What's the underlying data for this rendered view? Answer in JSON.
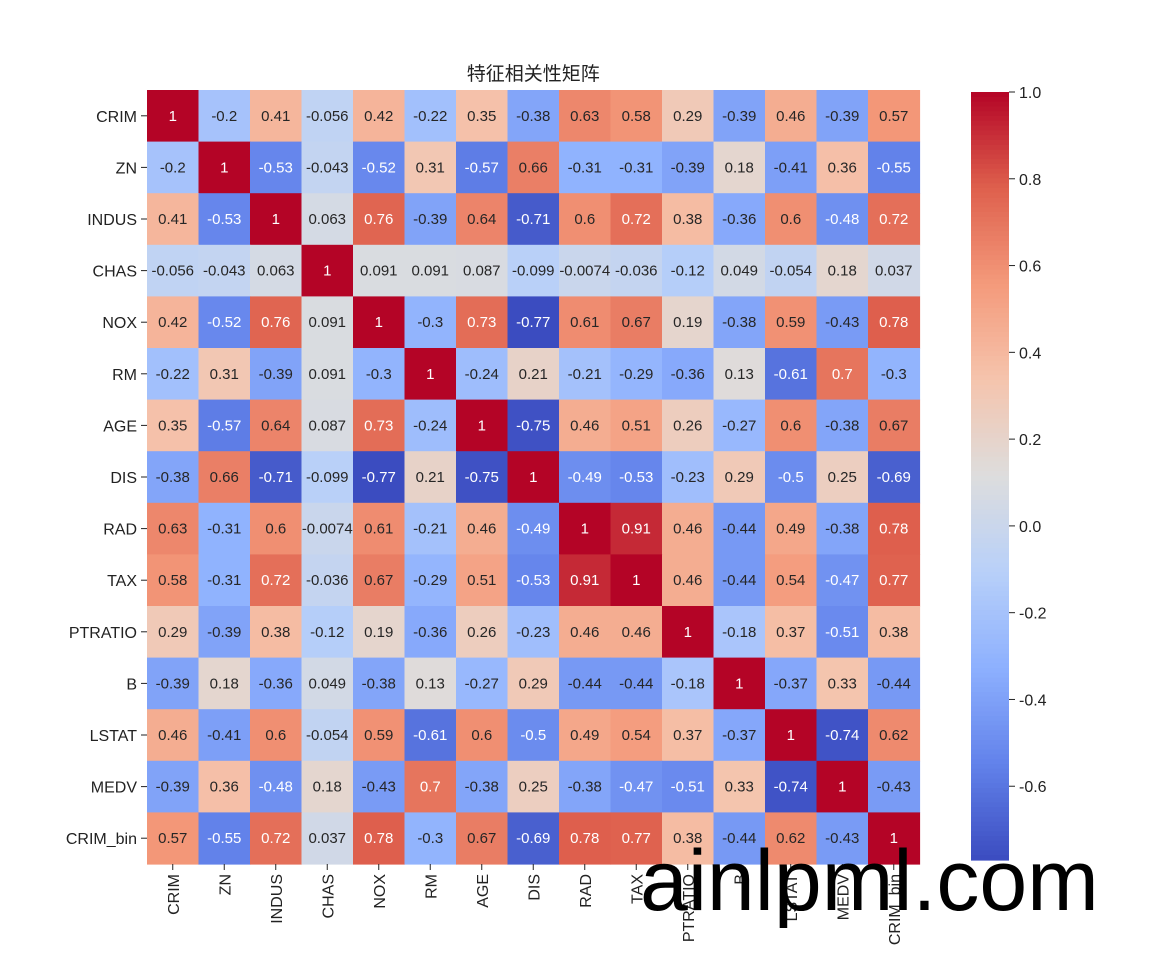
{
  "chart_data": {
    "type": "heatmap",
    "title": "特征相关性矩阵",
    "labels": [
      "CRIM",
      "ZN",
      "INDUS",
      "CHAS",
      "NOX",
      "RM",
      "AGE",
      "DIS",
      "RAD",
      "TAX",
      "PTRATIO",
      "B",
      "LSTAT",
      "MEDV",
      "CRIM_bin"
    ],
    "matrix": [
      [
        1,
        -0.2,
        0.41,
        -0.056,
        0.42,
        -0.22,
        0.35,
        -0.38,
        0.63,
        0.58,
        0.29,
        -0.39,
        0.46,
        -0.39,
        0.57
      ],
      [
        -0.2,
        1,
        -0.53,
        -0.043,
        -0.52,
        0.31,
        -0.57,
        0.66,
        -0.31,
        -0.31,
        -0.39,
        0.18,
        -0.41,
        0.36,
        -0.55
      ],
      [
        0.41,
        -0.53,
        1,
        0.063,
        0.76,
        -0.39,
        0.64,
        -0.71,
        0.6,
        0.72,
        0.38,
        -0.36,
        0.6,
        -0.48,
        0.72
      ],
      [
        -0.056,
        -0.043,
        0.063,
        1,
        0.091,
        0.091,
        0.087,
        -0.099,
        -0.0074,
        -0.036,
        -0.12,
        0.049,
        -0.054,
        0.18,
        0.037
      ],
      [
        0.42,
        -0.52,
        0.76,
        0.091,
        1,
        -0.3,
        0.73,
        -0.77,
        0.61,
        0.67,
        0.19,
        -0.38,
        0.59,
        -0.43,
        0.78
      ],
      [
        -0.22,
        0.31,
        -0.39,
        0.091,
        -0.3,
        1,
        -0.24,
        0.21,
        -0.21,
        -0.29,
        -0.36,
        0.13,
        -0.61,
        0.7,
        -0.3
      ],
      [
        0.35,
        -0.57,
        0.64,
        0.087,
        0.73,
        -0.24,
        1,
        -0.75,
        0.46,
        0.51,
        0.26,
        -0.27,
        0.6,
        -0.38,
        0.67
      ],
      [
        -0.38,
        0.66,
        -0.71,
        -0.099,
        -0.77,
        0.21,
        -0.75,
        1,
        -0.49,
        -0.53,
        -0.23,
        0.29,
        -0.5,
        0.25,
        -0.69
      ],
      [
        0.63,
        -0.31,
        0.6,
        -0.0074,
        0.61,
        -0.21,
        0.46,
        -0.49,
        1,
        0.91,
        0.46,
        -0.44,
        0.49,
        -0.38,
        0.78
      ],
      [
        0.58,
        -0.31,
        0.72,
        -0.036,
        0.67,
        -0.29,
        0.51,
        -0.53,
        0.91,
        1,
        0.46,
        -0.44,
        0.54,
        -0.47,
        0.77
      ],
      [
        0.29,
        -0.39,
        0.38,
        -0.12,
        0.19,
        -0.36,
        0.26,
        -0.23,
        0.46,
        0.46,
        1,
        -0.18,
        0.37,
        -0.51,
        0.38
      ],
      [
        -0.39,
        0.18,
        -0.36,
        0.049,
        -0.38,
        0.13,
        -0.27,
        0.29,
        -0.44,
        -0.44,
        -0.18,
        1,
        -0.37,
        0.33,
        -0.44
      ],
      [
        0.46,
        -0.41,
        0.6,
        -0.054,
        0.59,
        -0.61,
        0.6,
        -0.5,
        0.49,
        0.54,
        0.37,
        -0.37,
        1,
        -0.74,
        0.62
      ],
      [
        -0.39,
        0.36,
        -0.48,
        0.18,
        -0.43,
        0.7,
        -0.38,
        0.25,
        -0.38,
        -0.47,
        -0.51,
        0.33,
        -0.74,
        1,
        -0.43
      ],
      [
        0.57,
        -0.55,
        0.72,
        0.037,
        0.78,
        -0.3,
        0.67,
        -0.69,
        0.78,
        0.77,
        0.38,
        -0.44,
        0.62,
        -0.43,
        1
      ]
    ],
    "colormap": "coolwarm",
    "vmin": -0.77,
    "vmax": 1.0,
    "colorbar_ticks": [
      "1.0",
      "0.8",
      "0.6",
      "0.4",
      "0.2",
      "0.0",
      "-0.2",
      "-0.4",
      "-0.6"
    ],
    "annotations": true
  },
  "watermark": "ainlpml.com"
}
